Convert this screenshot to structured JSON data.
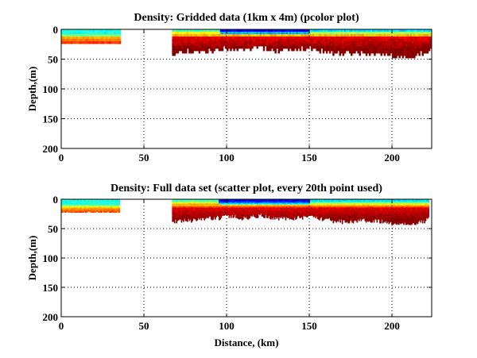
{
  "chart_data": [
    {
      "type": "heatmap",
      "variant": "pcolor",
      "title": "Density: Gridded data (1km x 4m) (pcolor plot)",
      "xlabel": "",
      "ylabel": "Depth,(m)",
      "xlim": [
        0,
        224
      ],
      "ylim": [
        200,
        0
      ],
      "xticks": [
        "0",
        "50",
        "100",
        "150",
        "200"
      ],
      "xtick_values": [
        0,
        50,
        100,
        150,
        200
      ],
      "yticks": [
        "0",
        "50",
        "100",
        "150",
        "200"
      ],
      "ytick_values": [
        0,
        50,
        100,
        150,
        200
      ],
      "grid": true,
      "grid_style": "dotted",
      "colormap": "jet",
      "cell_size": {
        "x_km": 1,
        "z_m": 4
      },
      "sections": [
        {
          "x_start": 0,
          "x_end": 36,
          "max_depth": 24,
          "surface_cold": false
        },
        {
          "x_start": 67,
          "x_end": 224,
          "max_depth": 45,
          "surface_cold": true
        }
      ],
      "bottom_depth_profile": {
        "x": [
          67,
          75,
          85,
          95,
          100,
          110,
          120,
          130,
          140,
          150,
          160,
          170,
          180,
          190,
          200,
          210,
          220,
          224
        ],
        "depth": [
          40,
          36,
          34,
          32,
          30,
          33,
          28,
          34,
          33,
          30,
          36,
          40,
          38,
          38,
          42,
          44,
          38,
          30
        ]
      }
    },
    {
      "type": "scatter",
      "variant": "colored scatter",
      "title": "Density: Full data set (scatter plot, every 20th point used)",
      "xlabel": "Distance, (km)",
      "ylabel": "Depth,(m)",
      "xlim": [
        0,
        224
      ],
      "ylim": [
        200,
        0
      ],
      "xticks": [
        "0",
        "50",
        "100",
        "150",
        "200"
      ],
      "xtick_values": [
        0,
        50,
        100,
        150,
        200
      ],
      "yticks": [
        "0",
        "50",
        "100",
        "150",
        "200"
      ],
      "ytick_values": [
        0,
        50,
        100,
        150,
        200
      ],
      "grid": true,
      "grid_style": "dotted",
      "colormap": "jet",
      "sample_every": 20,
      "sections": [
        {
          "x_start": 0,
          "x_end": 35,
          "max_depth": 22,
          "surface_cold": false
        },
        {
          "x_start": 67,
          "x_end": 222,
          "max_depth": 42,
          "surface_cold": true
        }
      ],
      "bottom_depth_profile": {
        "x": [
          67,
          75,
          85,
          95,
          100,
          110,
          120,
          130,
          140,
          150,
          160,
          170,
          180,
          190,
          200,
          210,
          220,
          222
        ],
        "depth": [
          38,
          35,
          33,
          30,
          28,
          31,
          26,
          32,
          31,
          29,
          34,
          37,
          36,
          36,
          40,
          42,
          36,
          30
        ]
      }
    }
  ]
}
